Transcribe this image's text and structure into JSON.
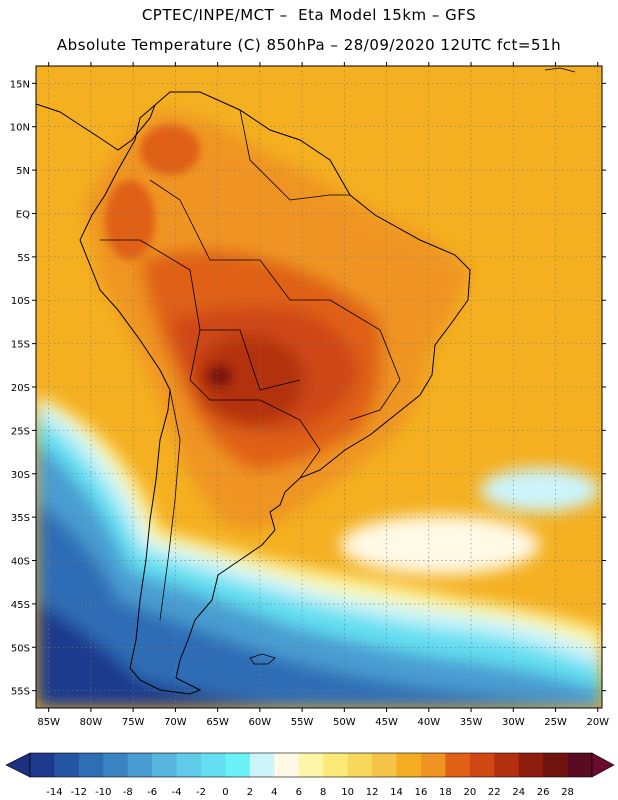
{
  "header": {
    "line1": "CPTEC/INPE/MCT –  Eta Model 15km – GFS",
    "line2": "Absolute Temperature (C) 850hPa – 28/09/2020 12UTC fct=51h"
  },
  "map": {
    "lat_range": [
      17,
      -57
    ],
    "lon_range": [
      -86.5,
      -19.5
    ],
    "lat_ticks": [
      {
        "lat": 15,
        "label": "15N"
      },
      {
        "lat": 10,
        "label": "10N"
      },
      {
        "lat": 5,
        "label": "5N"
      },
      {
        "lat": 0,
        "label": "EQ"
      },
      {
        "lat": -5,
        "label": "5S"
      },
      {
        "lat": -10,
        "label": "10S"
      },
      {
        "lat": -15,
        "label": "15S"
      },
      {
        "lat": -20,
        "label": "20S"
      },
      {
        "lat": -25,
        "label": "25S"
      },
      {
        "lat": -30,
        "label": "30S"
      },
      {
        "lat": -35,
        "label": "35S"
      },
      {
        "lat": -40,
        "label": "40S"
      },
      {
        "lat": -45,
        "label": "45S"
      },
      {
        "lat": -50,
        "label": "50S"
      },
      {
        "lat": -55,
        "label": "55S"
      }
    ],
    "lon_ticks": [
      {
        "lon": -85,
        "label": "85W"
      },
      {
        "lon": -80,
        "label": "80W"
      },
      {
        "lon": -75,
        "label": "75W"
      },
      {
        "lon": -70,
        "label": "70W"
      },
      {
        "lon": -65,
        "label": "65W"
      },
      {
        "lon": -60,
        "label": "60W"
      },
      {
        "lon": -55,
        "label": "55W"
      },
      {
        "lon": -50,
        "label": "50W"
      },
      {
        "lon": -45,
        "label": "45W"
      },
      {
        "lon": -40,
        "label": "40W"
      },
      {
        "lon": -35,
        "label": "35W"
      },
      {
        "lon": -30,
        "label": "30W"
      },
      {
        "lon": -25,
        "label": "25W"
      },
      {
        "lon": -20,
        "label": "20W"
      }
    ],
    "background_color": "#f4b020",
    "gridlines": true
  },
  "colorbar": {
    "labels": [
      "-14",
      "-12",
      "-10",
      "-8",
      "-6",
      "-4",
      "-2",
      "0",
      "2",
      "4",
      "6",
      "8",
      "10",
      "12",
      "14",
      "16",
      "18",
      "20",
      "22",
      "24",
      "26",
      "28"
    ],
    "colors": [
      "#1d3a8c",
      "#2556a3",
      "#2f6db5",
      "#3b84c4",
      "#4a9dd2",
      "#58b5de",
      "#5fcbe8",
      "#63dff1",
      "#6af2f7",
      "#ccf4fb",
      "#fff9e6",
      "#fdf6a8",
      "#fbe978",
      "#f8d85b",
      "#f5c346",
      "#f4ad20",
      "#ef9420",
      "#e06116",
      "#cf4712",
      "#b3300f",
      "#8e1d0e",
      "#701410",
      "#5b0a24"
    ],
    "under_color": "#1d2f80",
    "over_color": "#6a0a2e"
  }
}
